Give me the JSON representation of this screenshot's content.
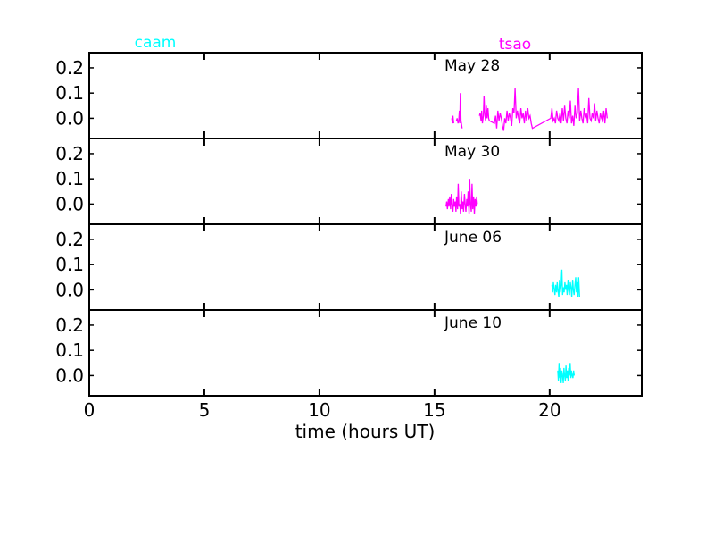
{
  "chart_data": {
    "type": "line",
    "xlabel": "time (hours UT)",
    "x_ticks": [
      "0",
      "5",
      "10",
      "15",
      "20"
    ],
    "y_ticks": [
      "0.0",
      "0.1",
      "0.2"
    ],
    "xlim": [
      0,
      24
    ],
    "ylim": [
      -0.08,
      0.26
    ],
    "legend": [
      {
        "label": "caam",
        "color": "#00ffff"
      },
      {
        "label": "tsao",
        "color": "#ff00ff"
      }
    ],
    "panels": [
      {
        "label": "May 28",
        "series": [
          {
            "color": "#ff00ff",
            "points": [
              [
                15.75,
                0.0
              ],
              [
                15.78,
                -0.02
              ],
              [
                15.8,
                0.01
              ],
              [
                15.83,
                -0.02
              ],
              [
                null,
                null
              ],
              [
                15.95,
                -0.01
              ],
              [
                15.98,
                0.0
              ],
              [
                16.02,
                -0.02
              ],
              [
                16.05,
                -0.01
              ],
              [
                16.08,
                0.03
              ],
              [
                16.1,
                -0.02
              ],
              [
                16.12,
                0.1
              ],
              [
                16.15,
                -0.01
              ],
              [
                16.2,
                -0.04
              ],
              [
                null,
                null
              ],
              [
                16.95,
                0.01
              ],
              [
                16.98,
                0.02
              ],
              [
                17.02,
                -0.01
              ],
              [
                17.05,
                0.03
              ],
              [
                17.08,
                -0.02
              ],
              [
                17.12,
                0.01
              ],
              [
                17.15,
                0.09
              ],
              [
                17.18,
                0.02
              ],
              [
                17.22,
                -0.01
              ],
              [
                17.25,
                0.05
              ],
              [
                17.28,
                0.0
              ],
              [
                17.32,
                0.04
              ],
              [
                17.35,
                0.0
              ],
              [
                17.38,
                -0.01
              ],
              [
                17.6,
                -0.02
              ],
              [
                17.65,
                0.01
              ],
              [
                17.7,
                -0.04
              ],
              [
                17.75,
                0.03
              ],
              [
                17.8,
                -0.01
              ],
              [
                17.85,
                0.02
              ],
              [
                17.9,
                0.0
              ],
              [
                17.95,
                -0.03
              ],
              [
                18.0,
                -0.05
              ],
              [
                18.05,
                0.0
              ],
              [
                18.1,
                -0.02
              ],
              [
                18.15,
                0.03
              ],
              [
                18.2,
                -0.01
              ],
              [
                18.25,
                0.02
              ],
              [
                18.3,
                0.0
              ],
              [
                18.35,
                -0.03
              ],
              [
                18.4,
                0.04
              ],
              [
                18.45,
                0.02
              ],
              [
                18.5,
                0.12
              ],
              [
                18.55,
                0.0
              ],
              [
                18.6,
                0.03
              ],
              [
                18.65,
                0.0
              ],
              [
                18.7,
                -0.02
              ],
              [
                18.75,
                0.04
              ],
              [
                18.8,
                0.0
              ],
              [
                18.85,
                0.02
              ],
              [
                18.9,
                -0.02
              ],
              [
                18.95,
                0.03
              ],
              [
                19.0,
                -0.01
              ],
              [
                19.05,
                0.04
              ],
              [
                19.1,
                0.0
              ],
              [
                19.15,
                0.01
              ],
              [
                19.2,
                -0.02
              ],
              [
                19.25,
                -0.04
              ],
              [
                20.05,
                0.0
              ],
              [
                20.1,
                0.04
              ],
              [
                20.15,
                -0.01
              ],
              [
                20.2,
                0.0
              ],
              [
                20.25,
                -0.02
              ],
              [
                20.3,
                0.03
              ],
              [
                20.35,
                0.0
              ],
              [
                20.4,
                -0.01
              ],
              [
                20.45,
                0.02
              ],
              [
                20.5,
                -0.02
              ],
              [
                20.55,
                0.04
              ],
              [
                20.6,
                -0.01
              ],
              [
                20.65,
                0.05
              ],
              [
                20.7,
                0.0
              ],
              [
                20.75,
                -0.02
              ],
              [
                20.8,
                0.03
              ],
              [
                20.85,
                0.0
              ],
              [
                20.9,
                0.07
              ],
              [
                20.95,
                -0.02
              ],
              [
                21.0,
                0.01
              ],
              [
                21.05,
                -0.03
              ],
              [
                21.1,
                0.05
              ],
              [
                21.15,
                0.0
              ],
              [
                21.2,
                0.02
              ],
              [
                21.25,
                0.12
              ],
              [
                21.3,
                -0.01
              ],
              [
                21.35,
                0.03
              ],
              [
                21.4,
                0.0
              ],
              [
                21.45,
                -0.02
              ],
              [
                21.5,
                0.04
              ],
              [
                21.55,
                0.0
              ],
              [
                21.6,
                0.02
              ],
              [
                21.65,
                -0.02
              ],
              [
                21.7,
                0.08
              ],
              [
                21.75,
                0.0
              ],
              [
                21.8,
                -0.01
              ],
              [
                21.85,
                0.02
              ],
              [
                21.9,
                0.0
              ],
              [
                21.95,
                0.06
              ],
              [
                22.0,
                -0.01
              ],
              [
                22.05,
                0.03
              ],
              [
                22.1,
                0.0
              ],
              [
                22.15,
                -0.02
              ],
              [
                22.2,
                0.02
              ],
              [
                22.25,
                0.0
              ],
              [
                22.3,
                -0.01
              ],
              [
                22.35,
                0.03
              ],
              [
                22.4,
                -0.02
              ],
              [
                22.45,
                0.04
              ],
              [
                22.5,
                0.0
              ]
            ]
          }
        ]
      },
      {
        "label": "May 30",
        "series": [
          {
            "color": "#ff00ff",
            "points": [
              [
                15.5,
                -0.01
              ],
              [
                15.53,
                0.01
              ],
              [
                15.56,
                -0.02
              ],
              [
                15.6,
                0.02
              ],
              [
                15.63,
                -0.01
              ],
              [
                15.66,
                0.03
              ],
              [
                15.7,
                -0.02
              ],
              [
                15.73,
                0.04
              ],
              [
                15.76,
                0.0
              ],
              [
                15.8,
                -0.03
              ],
              [
                15.83,
                0.02
              ],
              [
                15.86,
                -0.01
              ],
              [
                15.9,
                0.01
              ],
              [
                15.93,
                -0.03
              ],
              [
                15.96,
                0.03
              ],
              [
                16.0,
                -0.02
              ],
              [
                16.03,
                0.08
              ],
              [
                16.06,
                -0.01
              ],
              [
                16.1,
                0.0
              ],
              [
                16.13,
                -0.04
              ],
              [
                16.16,
                0.05
              ],
              [
                16.2,
                -0.02
              ],
              [
                16.23,
                0.01
              ],
              [
                16.26,
                -0.03
              ],
              [
                16.3,
                0.04
              ],
              [
                16.33,
                0.0
              ],
              [
                16.36,
                -0.03
              ],
              [
                16.4,
                0.02
              ],
              [
                16.43,
                -0.01
              ],
              [
                16.46,
                0.05
              ],
              [
                16.5,
                -0.04
              ],
              [
                16.53,
                0.1
              ],
              [
                16.56,
                0.0
              ],
              [
                16.6,
                -0.03
              ],
              [
                16.63,
                0.08
              ],
              [
                16.66,
                -0.02
              ],
              [
                16.7,
                0.03
              ],
              [
                16.73,
                -0.04
              ],
              [
                16.76,
                0.02
              ],
              [
                16.8,
                -0.01
              ],
              [
                16.83,
                0.03
              ],
              [
                16.86,
                0.0
              ]
            ]
          }
        ]
      },
      {
        "label": "June 06",
        "series": [
          {
            "color": "#00ffff",
            "points": [
              [
                20.1,
                0.02
              ],
              [
                20.13,
                -0.01
              ],
              [
                20.16,
                0.03
              ],
              [
                20.2,
                0.0
              ],
              [
                20.23,
                -0.02
              ],
              [
                20.26,
                0.02
              ],
              [
                20.3,
                -0.01
              ],
              [
                20.33,
                0.03
              ],
              [
                20.36,
                0.0
              ],
              [
                20.4,
                -0.03
              ],
              [
                20.43,
                0.04
              ],
              [
                20.46,
                -0.01
              ],
              [
                20.5,
                0.02
              ],
              [
                20.53,
                0.08
              ],
              [
                20.56,
                -0.02
              ],
              [
                20.6,
                0.01
              ],
              [
                20.63,
                -0.01
              ],
              [
                20.66,
                0.03
              ],
              [
                20.7,
                0.0
              ],
              [
                20.73,
                0.02
              ],
              [
                20.76,
                -0.02
              ],
              [
                20.8,
                0.04
              ],
              [
                20.83,
                0.0
              ],
              [
                20.86,
                -0.02
              ],
              [
                20.9,
                0.03
              ],
              [
                20.93,
                0.01
              ],
              [
                20.96,
                -0.03
              ],
              [
                21.0,
                0.04
              ],
              [
                21.03,
                0.0
              ],
              [
                21.06,
                -0.02
              ],
              [
                21.1,
                0.02
              ],
              [
                21.13,
                0.05
              ],
              [
                21.16,
                -0.01
              ],
              [
                21.2,
                0.03
              ],
              [
                21.23,
                -0.03
              ],
              [
                21.26,
                0.05
              ],
              [
                21.3,
                -0.03
              ]
            ]
          }
        ]
      },
      {
        "label": "June 10",
        "series": [
          {
            "color": "#00ffff",
            "points": [
              [
                20.35,
                0.02
              ],
              [
                20.38,
                -0.02
              ],
              [
                20.41,
                0.05
              ],
              [
                20.44,
                -0.01
              ],
              [
                20.47,
                0.03
              ],
              [
                20.5,
                -0.03
              ],
              [
                20.53,
                0.02
              ],
              [
                20.56,
                0.0
              ],
              [
                20.59,
                -0.03
              ],
              [
                20.62,
                0.03
              ],
              [
                20.65,
                0.0
              ],
              [
                20.68,
                -0.02
              ],
              [
                20.71,
                0.04
              ],
              [
                20.74,
                -0.01
              ],
              [
                20.77,
                0.02
              ],
              [
                20.8,
                -0.02
              ],
              [
                20.83,
                0.03
              ],
              [
                20.86,
                0.0
              ],
              [
                20.89,
                0.05
              ],
              [
                20.92,
                -0.01
              ],
              [
                20.95,
                0.02
              ],
              [
                20.98,
                0.0
              ],
              [
                21.01,
                -0.01
              ],
              [
                21.04,
                0.02
              ],
              [
                21.07,
                0.0
              ]
            ]
          }
        ]
      }
    ]
  }
}
